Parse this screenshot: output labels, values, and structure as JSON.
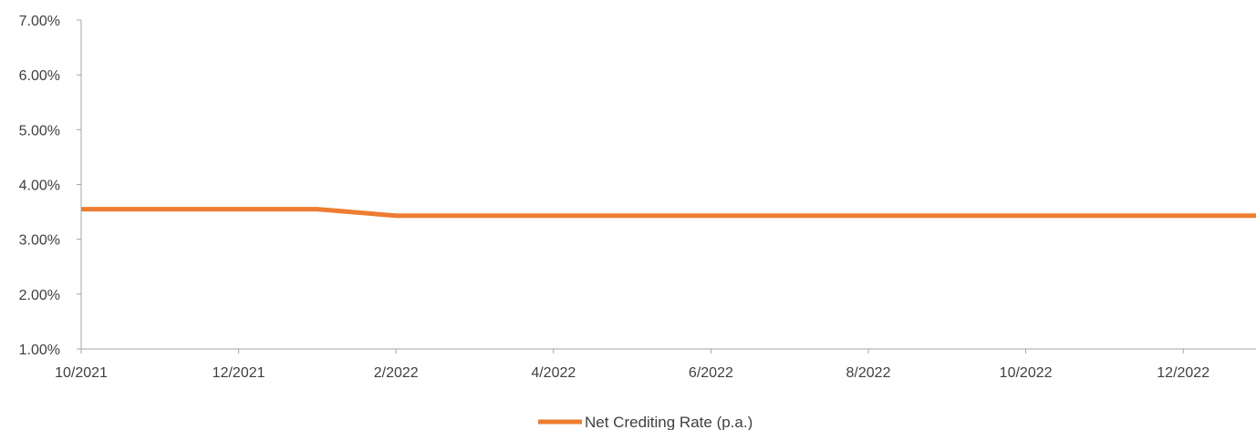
{
  "chart_data": {
    "type": "line",
    "title": "",
    "xlabel": "",
    "ylabel": "",
    "x_tick_labels": [
      "10/2021",
      "12/2021",
      "2/2022",
      "4/2022",
      "6/2022",
      "8/2022",
      "10/2022",
      "12/2022"
    ],
    "y_tick_labels": [
      "1.00%",
      "2.00%",
      "3.00%",
      "4.00%",
      "5.00%",
      "6.00%",
      "7.00%"
    ],
    "ylim": [
      1.0,
      7.0
    ],
    "xlim": [
      "10/2021",
      "1/2023"
    ],
    "grid": false,
    "legend_position": "bottom-center",
    "series": [
      {
        "name": "Net Crediting Rate (p.a.)",
        "color": "#ed7d31",
        "x": [
          "10/2021",
          "11/2021",
          "12/2021",
          "1/2022",
          "2/2022",
          "3/2022",
          "4/2022",
          "5/2022",
          "6/2022",
          "7/2022",
          "8/2022",
          "9/2022",
          "10/2022",
          "11/2022",
          "12/2022",
          "1/2023"
        ],
        "values": [
          3.55,
          3.55,
          3.55,
          3.55,
          3.43,
          3.43,
          3.43,
          3.43,
          3.43,
          3.43,
          3.43,
          3.43,
          3.43,
          3.43,
          3.43,
          3.43
        ]
      }
    ]
  }
}
